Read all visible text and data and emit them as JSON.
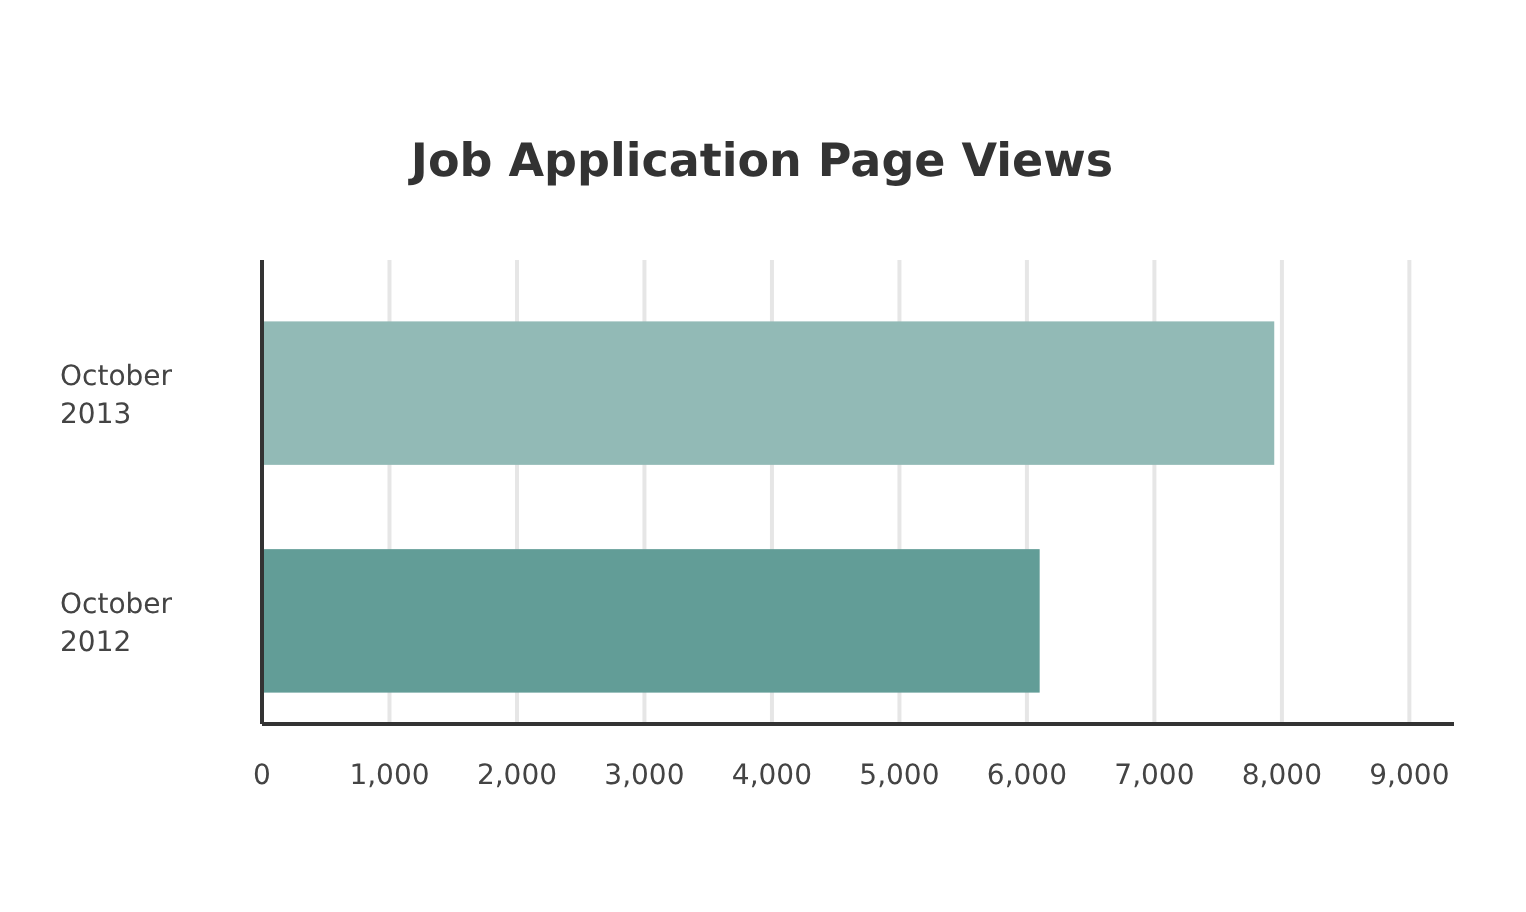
{
  "chart_data": {
    "type": "bar",
    "orientation": "horizontal",
    "title": "Job Application Page Views",
    "categories": [
      "October 2013",
      "October 2012"
    ],
    "values": [
      7940,
      6100
    ],
    "colors": [
      "#92bab6",
      "#629d97"
    ],
    "xlim": [
      0,
      9350
    ],
    "xticks": [
      0,
      {
        "value": 1000,
        "label": "1,000"
      },
      {
        "value": 2000,
        "label": "2,000"
      },
      {
        "value": 3000,
        "label": "3,000"
      },
      {
        "value": 4000,
        "label": "4,000"
      },
      {
        "value": 5000,
        "label": "5,000"
      },
      {
        "value": 6000,
        "label": "6,000"
      },
      {
        "value": 7000,
        "label": "7,000"
      },
      {
        "value": 8000,
        "label": "8,000"
      },
      {
        "value": 9000,
        "label": "9,000"
      }
    ],
    "grid": "x"
  }
}
